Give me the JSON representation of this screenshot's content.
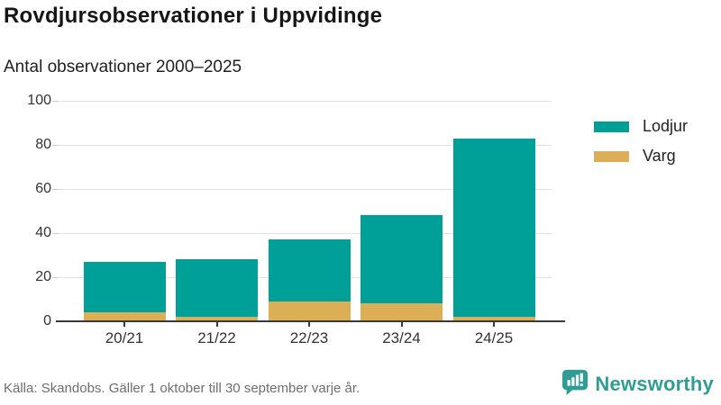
{
  "header": {
    "title": "Rovdjursobservationer i Uppvidinge",
    "subtitle": "Antal observationer 2000–2025"
  },
  "chart_data": {
    "type": "bar",
    "stacked": true,
    "categories": [
      "20/21",
      "21/22",
      "22/23",
      "23/24",
      "24/25"
    ],
    "series": [
      {
        "name": "Varg",
        "color": "#dcae55",
        "values": [
          4,
          2,
          9,
          8,
          2
        ]
      },
      {
        "name": "Lodjur",
        "color": "#00a099",
        "values": [
          23,
          26,
          28,
          40,
          81
        ]
      }
    ],
    "legend": [
      {
        "label": "Lodjur",
        "color": "#00a099"
      },
      {
        "label": "Varg",
        "color": "#dcae55"
      }
    ],
    "legend_position": "right",
    "xlabel": "",
    "ylabel": "",
    "ylim": [
      0,
      100
    ],
    "yticks": [
      0,
      20,
      40,
      60,
      80,
      100
    ],
    "grid": true
  },
  "footer": {
    "source": "Källa: Skandobs. Gäller 1 oktober till 30 september varje år.",
    "brand": "Newsworthy"
  },
  "colors": {
    "teal": "#00a099",
    "gold": "#dcae55",
    "brand_teal": "#2f9d93",
    "grid": "#e2e2e2",
    "axis": "#3a3a3a",
    "text": "#333333"
  }
}
